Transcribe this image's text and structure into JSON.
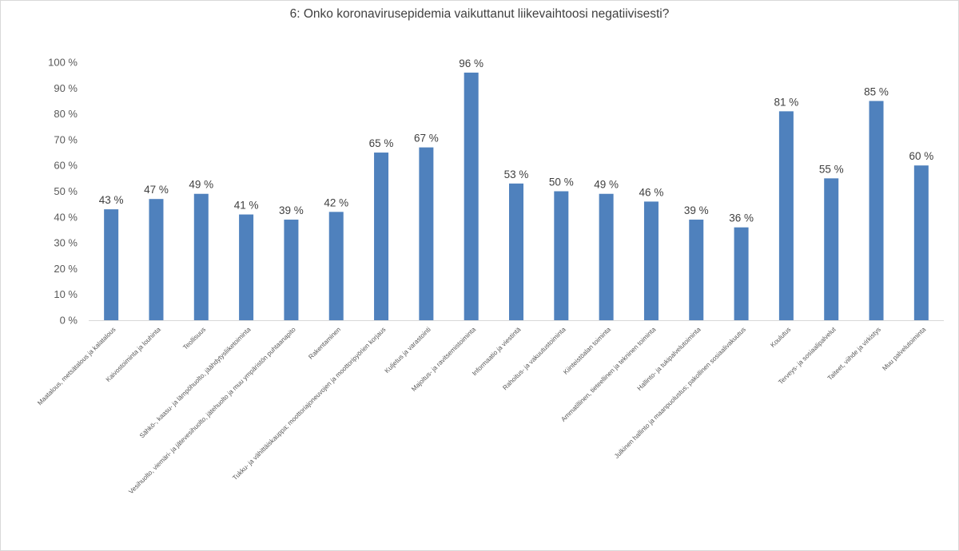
{
  "chart_data": {
    "type": "bar",
    "title": "6: Onko koronavirusepidemia  vaikuttanut liikevaihtoosi negatiivisesti?",
    "categories": [
      "Maatalous, metsätalous ja kalatalous",
      "Kaivostoiminta ja louhinta",
      "Teollisuus",
      "Sähkö-, kaasu- ja lämpöhuolto, jäähdytysliiketoiminta",
      "Vesihuolto, viemäri- ja jätevesihuolto, jätehuolto ja muu ympäristön puhtaanapito",
      "Rakentaminen",
      "Tukku- ja vähittäiskauppa; moottoriajoneuvojen ja moottoripyörien korjaus",
      "Kuljetus ja varastointi",
      "Majoitus- ja ravitsemistoiminta",
      "Informaatio ja viestintä",
      "Rahoitus- ja vakuutustoiminta",
      "Kiinteistöalan toiminta",
      "Ammatillinen, tieteellinen ja tekninen toiminta",
      "Hallinto- ja tukipalvelutoiminta",
      "Julkinen hallinto ja maanpuolustus; pakollinen sosiaalivakuutus",
      "Koulutus",
      "Terveys- ja sosiaalipalvelut",
      "Taiteet, viihde ja virkistys",
      "Muu palvelutoiminta"
    ],
    "values": [
      43,
      47,
      49,
      41,
      39,
      42,
      65,
      67,
      96,
      53,
      50,
      49,
      46,
      39,
      36,
      81,
      55,
      85,
      60
    ],
    "data_labels": [
      "43 %",
      "47 %",
      "49 %",
      "41 %",
      "39 %",
      "42 %",
      "65 %",
      "67 %",
      "96 %",
      "53 %",
      "50 %",
      "49 %",
      "46 %",
      "39 %",
      "36 %",
      "81 %",
      "55 %",
      "85 %",
      "60 %"
    ],
    "yticks": [
      "0 %",
      "10 %",
      "20 %",
      "30 %",
      "40 %",
      "50 %",
      "60 %",
      "70 %",
      "80 %",
      "90 %",
      "100 %"
    ],
    "ylim": [
      0,
      100
    ],
    "xlabel": "",
    "ylabel": "",
    "grid": false,
    "legend": "none",
    "bar_color": "#4f81bd",
    "axis_color": "#d9d9d9"
  }
}
